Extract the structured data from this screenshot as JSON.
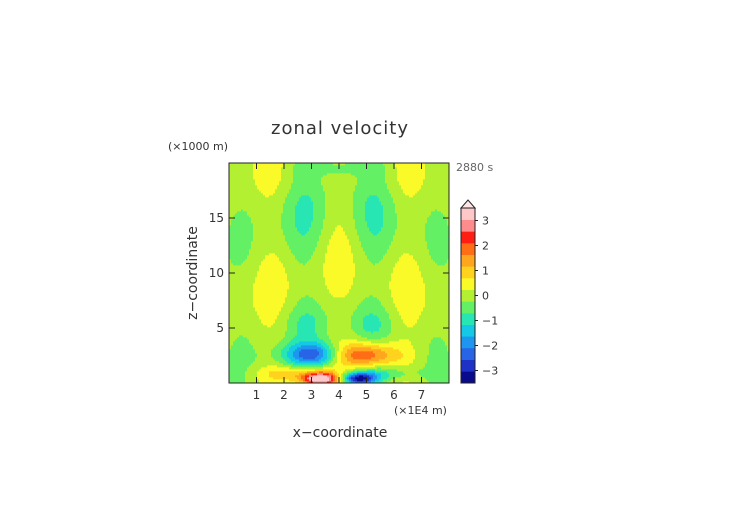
{
  "chart_data": {
    "type": "heatmap",
    "title": "zonal velocity",
    "time_label": "2880 s",
    "xlabel": "x−coordinate",
    "ylabel": "z−coordinate",
    "x_unit_label": "(×1E4 m)",
    "y_unit_label": "(×1000 m)",
    "xlim": [
      0,
      8
    ],
    "ylim": [
      0,
      20
    ],
    "x_ticks": [
      "1",
      "2",
      "3",
      "4",
      "5",
      "6",
      "7"
    ],
    "y_ticks": [
      "5",
      "10",
      "15"
    ],
    "colorbar": {
      "levels": [
        -3.5,
        -3,
        -2.5,
        -2,
        -1.5,
        -1,
        -0.5,
        0,
        0.5,
        1,
        1.5,
        2,
        2.5,
        3,
        3.5
      ],
      "tick_labels": [
        "−3",
        "−2",
        "−1",
        "0",
        "1",
        "2",
        "3"
      ],
      "tick_values": [
        -3,
        -2,
        -1,
        0,
        1,
        2,
        3
      ],
      "colors": [
        "#0a0a8c",
        "#1e32c8",
        "#2864e6",
        "#1e96f0",
        "#14c8e6",
        "#28e6b4",
        "#64f064",
        "#b4f032",
        "#fafa28",
        "#ffd21e",
        "#ffa51e",
        "#ff6e14",
        "#ff1e14",
        "#ff8c8c",
        "#ffc8c8"
      ],
      "extend_top": true
    },
    "features": [
      {
        "x": 4.0,
        "z": 19.6,
        "sx": 1.2,
        "sz": 0.5,
        "amp": -0.7
      },
      {
        "x": 2.6,
        "z": 14.5,
        "sx": 0.7,
        "sz": 3.5,
        "amp": -0.5
      },
      {
        "x": 5.4,
        "z": 14.5,
        "sx": 0.7,
        "sz": 3.5,
        "amp": -0.5
      },
      {
        "x": 2.8,
        "z": 5.5,
        "sx": 0.6,
        "sz": 1.2,
        "amp": -0.5
      },
      {
        "x": 5.2,
        "z": 5.5,
        "sx": 0.6,
        "sz": 1.2,
        "amp": -0.5
      },
      {
        "x": 3.3,
        "z": 2.6,
        "sx": 0.9,
        "sz": 0.8,
        "amp": -3.0
      },
      {
        "x": 4.7,
        "z": 2.6,
        "sx": 0.9,
        "sz": 0.8,
        "amp": 3.0
      },
      {
        "x": 3.3,
        "z": 0.4,
        "sx": 0.45,
        "sz": 0.4,
        "amp": 3.8
      },
      {
        "x": 4.7,
        "z": 0.4,
        "sx": 0.45,
        "sz": 0.4,
        "amp": -3.5
      },
      {
        "x": 2.6,
        "z": 0.9,
        "sx": 1.0,
        "sz": 0.5,
        "amp": 1.0
      },
      {
        "x": 5.4,
        "z": 0.9,
        "sx": 1.0,
        "sz": 0.5,
        "amp": -1.0
      }
    ]
  }
}
